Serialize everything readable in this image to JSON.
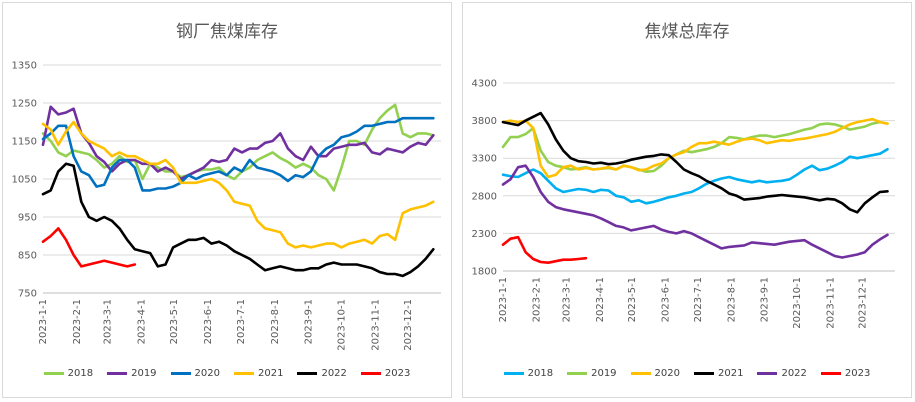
{
  "chart_data": [
    {
      "type": "line",
      "title": "钢厂焦煤库存",
      "yticks": [
        750,
        850,
        950,
        1050,
        1150,
        1250,
        1350
      ],
      "ylim": [
        750,
        1350
      ],
      "xlim": [
        0,
        52
      ],
      "xticks": [
        {
          "pos": 0,
          "label": "2023-1-1"
        },
        {
          "pos": 4.43,
          "label": "2023-2-1"
        },
        {
          "pos": 8.43,
          "label": "2023-3-1"
        },
        {
          "pos": 12.86,
          "label": "2023-4-1"
        },
        {
          "pos": 17.14,
          "label": "2023-5-1"
        },
        {
          "pos": 21.57,
          "label": "2023-6-1"
        },
        {
          "pos": 25.86,
          "label": "2023-7-1"
        },
        {
          "pos": 30.29,
          "label": "2023-8-1"
        },
        {
          "pos": 34.71,
          "label": "2023-9-1"
        },
        {
          "pos": 39.0,
          "label": "2023-10-1"
        },
        {
          "pos": 43.43,
          "label": "2023-11-1"
        },
        {
          "pos": 47.71,
          "label": "2023-12-1"
        }
      ],
      "grid": true,
      "legend": "bottom",
      "series": [
        {
          "name": "2018",
          "color": "#92d050",
          "values": [
            1170,
            1150,
            1120,
            1110,
            1125,
            1120,
            1115,
            1100,
            1080,
            1090,
            1110,
            1095,
            1100,
            1050,
            1090,
            1080,
            1070,
            1070,
            1055,
            1060,
            1070,
            1075,
            1075,
            1080,
            1060,
            1050,
            1070,
            1080,
            1100,
            1110,
            1120,
            1105,
            1095,
            1080,
            1090,
            1080,
            1060,
            1050,
            1020,
            1080,
            1150,
            1150,
            1140,
            1180,
            1210,
            1230,
            1245,
            1170,
            1160,
            1170,
            1170,
            1165
          ]
        },
        {
          "name": "2019",
          "color": "#7030a0",
          "values": [
            1140,
            1240,
            1220,
            1225,
            1235,
            1170,
            1145,
            1110,
            1095,
            1070,
            1090,
            1100,
            1100,
            1090,
            1090,
            1070,
            1080,
            1070,
            1050,
            1060,
            1070,
            1080,
            1100,
            1095,
            1100,
            1130,
            1120,
            1130,
            1130,
            1145,
            1150,
            1170,
            1130,
            1110,
            1100,
            1135,
            1110,
            1110,
            1130,
            1135,
            1140,
            1140,
            1145,
            1120,
            1115,
            1130,
            1125,
            1120,
            1135,
            1145,
            1140,
            1165
          ]
        },
        {
          "name": "2020",
          "color": "#0070c0",
          "values": [
            1155,
            1170,
            1190,
            1190,
            1110,
            1070,
            1060,
            1030,
            1035,
            1080,
            1100,
            1100,
            1080,
            1020,
            1020,
            1025,
            1025,
            1030,
            1040,
            1060,
            1050,
            1060,
            1065,
            1070,
            1060,
            1080,
            1070,
            1100,
            1080,
            1075,
            1070,
            1060,
            1045,
            1060,
            1055,
            1070,
            1110,
            1130,
            1140,
            1160,
            1165,
            1175,
            1190,
            1190,
            1195,
            1200,
            1200,
            1210,
            1210,
            1210,
            1210,
            1210
          ]
        },
        {
          "name": "2021",
          "color": "#ffc000",
          "values": [
            1195,
            1180,
            1140,
            1175,
            1200,
            1170,
            1150,
            1140,
            1130,
            1110,
            1120,
            1110,
            1110,
            1100,
            1090,
            1090,
            1100,
            1080,
            1040,
            1040,
            1040,
            1045,
            1050,
            1040,
            1020,
            990,
            985,
            980,
            940,
            920,
            915,
            910,
            880,
            870,
            875,
            870,
            875,
            880,
            880,
            870,
            880,
            885,
            890,
            880,
            900,
            905,
            890,
            960,
            970,
            975,
            980,
            990
          ]
        },
        {
          "name": "2022",
          "color": "#000000",
          "values": [
            1010,
            1020,
            1070,
            1090,
            1085,
            990,
            950,
            940,
            950,
            940,
            920,
            890,
            865,
            860,
            855,
            820,
            825,
            870,
            880,
            890,
            890,
            895,
            880,
            885,
            875,
            860,
            850,
            840,
            825,
            810,
            815,
            820,
            815,
            810,
            810,
            815,
            815,
            825,
            830,
            825,
            825,
            825,
            820,
            815,
            805,
            800,
            800,
            795,
            805,
            820,
            840,
            865
          ]
        },
        {
          "name": "2023",
          "color": "#ff0000",
          "values": [
            885,
            900,
            920,
            890,
            850,
            820,
            825,
            830,
            835,
            830,
            825,
            820,
            825
          ]
        }
      ]
    },
    {
      "type": "line",
      "title": "焦煤总库存",
      "yticks": [
        1800,
        2300,
        2800,
        3300,
        3800,
        4300
      ],
      "ylim": [
        1800,
        4300
      ],
      "xlim": [
        0,
        52
      ],
      "xticks": [
        {
          "pos": 0,
          "label": "2023-1-1"
        },
        {
          "pos": 4.43,
          "label": "2023-2-1"
        },
        {
          "pos": 8.43,
          "label": "2023-3-1"
        },
        {
          "pos": 12.86,
          "label": "2023-4-1"
        },
        {
          "pos": 17.14,
          "label": "2023-5-1"
        },
        {
          "pos": 21.57,
          "label": "2023-6-1"
        },
        {
          "pos": 25.86,
          "label": "2023-7-1"
        },
        {
          "pos": 30.29,
          "label": "2023-8-1"
        },
        {
          "pos": 34.71,
          "label": "2023-9-1"
        },
        {
          "pos": 39.0,
          "label": "2023-10-1"
        },
        {
          "pos": 43.43,
          "label": "2023-11-1"
        },
        {
          "pos": 47.71,
          "label": "2023-12-1"
        }
      ],
      "grid": true,
      "legend": "bottom",
      "series": [
        {
          "name": "2018",
          "color": "#00b0f0",
          "values": [
            3080,
            3060,
            3050,
            3100,
            3150,
            3100,
            3000,
            2900,
            2850,
            2870,
            2890,
            2880,
            2850,
            2880,
            2870,
            2800,
            2780,
            2720,
            2740,
            2700,
            2720,
            2750,
            2780,
            2800,
            2830,
            2850,
            2900,
            2960,
            3000,
            3030,
            3050,
            3020,
            3000,
            2980,
            3000,
            2980,
            2990,
            3000,
            3020,
            3080,
            3150,
            3200,
            3140,
            3160,
            3200,
            3250,
            3320,
            3300,
            3320,
            3340,
            3360,
            3420
          ]
        },
        {
          "name": "2019",
          "color": "#92d050",
          "values": [
            3450,
            3580,
            3580,
            3620,
            3700,
            3400,
            3250,
            3200,
            3180,
            3150,
            3160,
            3180,
            3150,
            3160,
            3170,
            3150,
            3200,
            3180,
            3150,
            3120,
            3130,
            3200,
            3300,
            3350,
            3400,
            3380,
            3400,
            3420,
            3450,
            3500,
            3580,
            3570,
            3550,
            3580,
            3600,
            3600,
            3580,
            3600,
            3620,
            3650,
            3680,
            3700,
            3750,
            3760,
            3750,
            3720,
            3680,
            3700,
            3720,
            3760,
            3780,
            3760
          ]
        },
        {
          "name": "2020",
          "color": "#ffc000",
          "values": [
            3780,
            3800,
            3780,
            3800,
            3700,
            3200,
            3050,
            3080,
            3180,
            3200,
            3150,
            3170,
            3150,
            3160,
            3180,
            3150,
            3200,
            3180,
            3140,
            3150,
            3200,
            3230,
            3300,
            3350,
            3380,
            3450,
            3500,
            3500,
            3520,
            3500,
            3480,
            3520,
            3550,
            3560,
            3540,
            3500,
            3520,
            3540,
            3530,
            3550,
            3560,
            3580,
            3600,
            3620,
            3650,
            3700,
            3750,
            3780,
            3800,
            3820,
            3780,
            3760
          ]
        },
        {
          "name": "2021",
          "color": "#000000",
          "values": [
            3780,
            3760,
            3740,
            3800,
            3850,
            3900,
            3750,
            3550,
            3400,
            3300,
            3260,
            3250,
            3230,
            3240,
            3220,
            3230,
            3250,
            3280,
            3300,
            3320,
            3330,
            3350,
            3340,
            3250,
            3150,
            3100,
            3060,
            3000,
            2950,
            2900,
            2830,
            2800,
            2750,
            2760,
            2770,
            2790,
            2800,
            2810,
            2800,
            2790,
            2780,
            2760,
            2740,
            2760,
            2750,
            2700,
            2620,
            2580,
            2700,
            2780,
            2850,
            2860
          ]
        },
        {
          "name": "2022",
          "color": "#7030a0",
          "values": [
            2950,
            3020,
            3180,
            3200,
            3050,
            2850,
            2720,
            2650,
            2620,
            2600,
            2580,
            2560,
            2540,
            2500,
            2450,
            2400,
            2380,
            2340,
            2360,
            2380,
            2400,
            2350,
            2320,
            2300,
            2330,
            2300,
            2250,
            2200,
            2150,
            2100,
            2120,
            2130,
            2140,
            2180,
            2170,
            2160,
            2150,
            2170,
            2190,
            2200,
            2210,
            2150,
            2100,
            2050,
            2000,
            1980,
            2000,
            2020,
            2050,
            2150,
            2220,
            2280
          ]
        },
        {
          "name": "2023",
          "color": "#ff0000",
          "values": [
            2150,
            2230,
            2250,
            2050,
            1960,
            1920,
            1910,
            1930,
            1950,
            1950,
            1960,
            1970
          ]
        }
      ]
    }
  ]
}
